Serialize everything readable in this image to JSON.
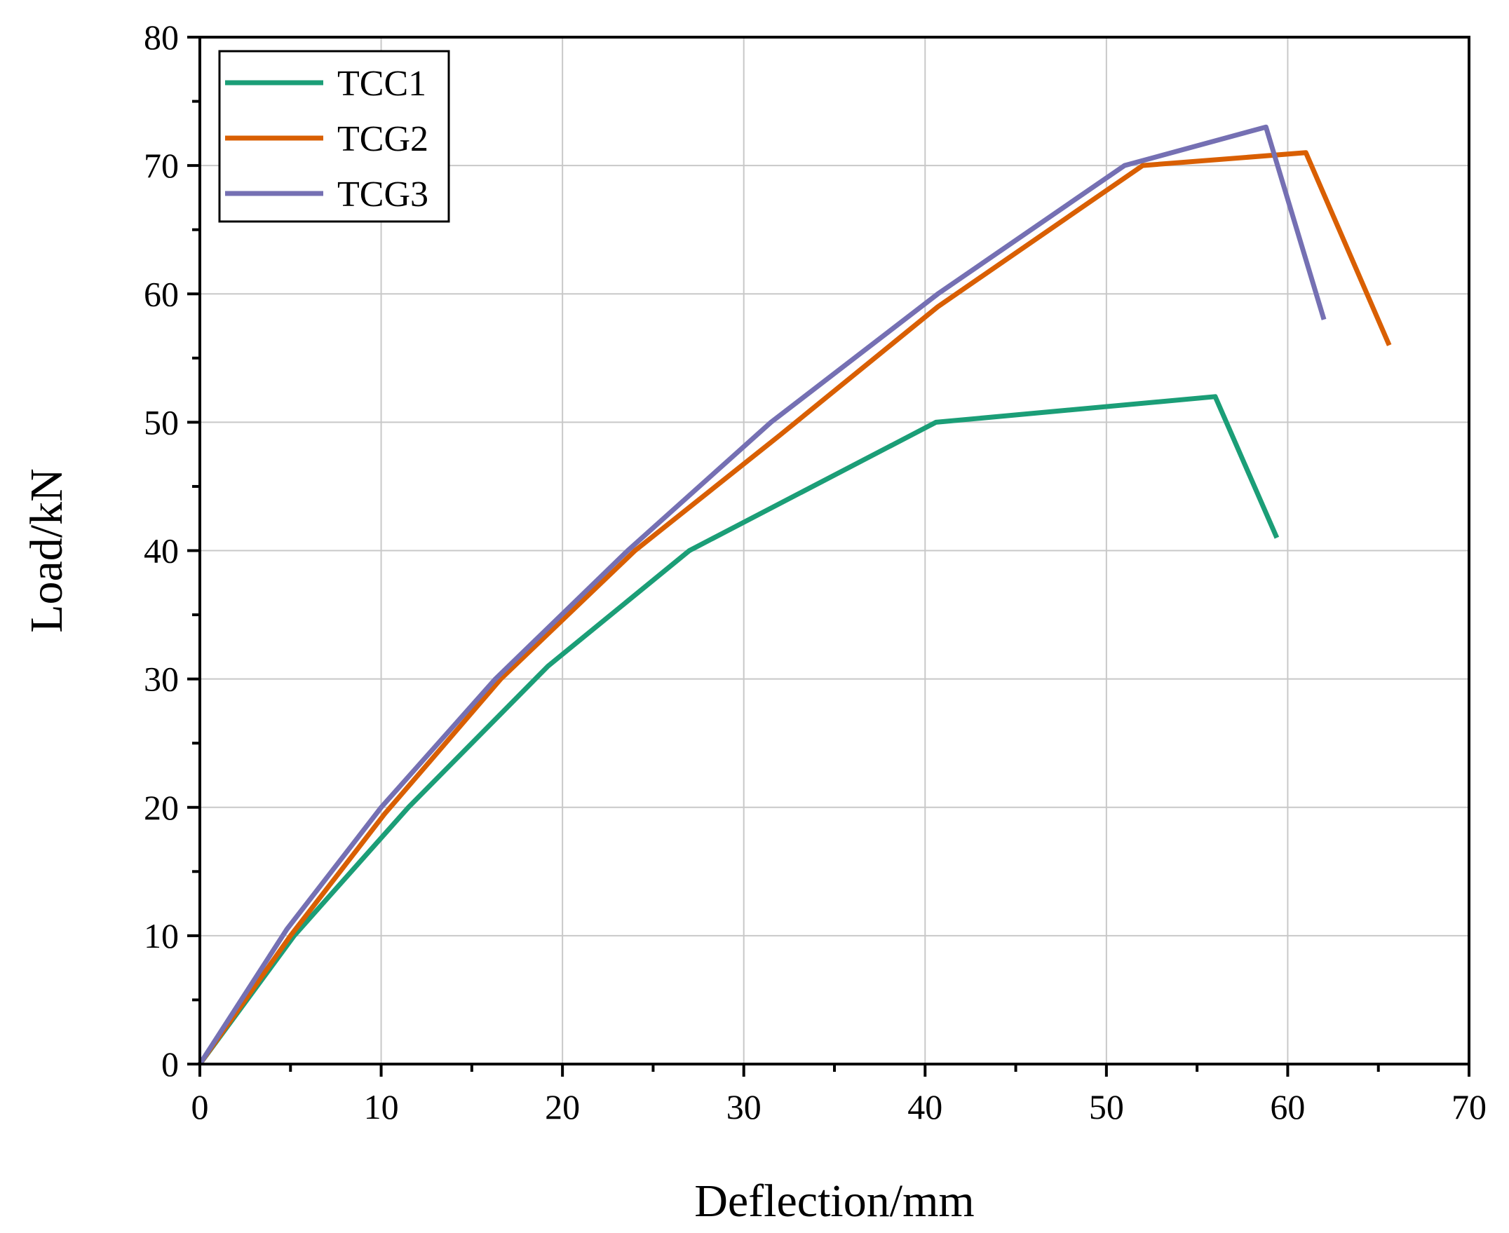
{
  "chart_data": {
    "type": "line",
    "xlabel": "Deflection/mm",
    "ylabel": "Load/kN",
    "xlim": [
      0,
      70
    ],
    "ylim": [
      0,
      80
    ],
    "x_ticks": [
      0,
      10,
      20,
      30,
      40,
      50,
      60,
      70
    ],
    "y_ticks": [
      0,
      10,
      20,
      30,
      40,
      50,
      60,
      70,
      80
    ],
    "grid": true,
    "legend_position": "top-left",
    "series": [
      {
        "name": "TCC1",
        "color": "#1b9e77",
        "points": [
          [
            0,
            0
          ],
          [
            5.2,
            10
          ],
          [
            11.5,
            20
          ],
          [
            19.2,
            31
          ],
          [
            27,
            40
          ],
          [
            40.6,
            50
          ],
          [
            56,
            52
          ],
          [
            59.4,
            41
          ]
        ]
      },
      {
        "name": "TCG2",
        "color": "#d95f02",
        "points": [
          [
            0,
            0
          ],
          [
            5,
            10
          ],
          [
            10.2,
            19.5
          ],
          [
            16.6,
            30
          ],
          [
            24,
            40
          ],
          [
            32,
            49
          ],
          [
            40.7,
            59
          ],
          [
            52,
            70
          ],
          [
            61,
            71
          ],
          [
            65.6,
            56
          ]
        ]
      },
      {
        "name": "TCG3",
        "color": "#7570b3",
        "points": [
          [
            0,
            0
          ],
          [
            4.8,
            10.5
          ],
          [
            10,
            20
          ],
          [
            16.3,
            30
          ],
          [
            23.6,
            40
          ],
          [
            31.5,
            50
          ],
          [
            40.7,
            60
          ],
          [
            51,
            70
          ],
          [
            58.8,
            73
          ],
          [
            62,
            58
          ]
        ]
      }
    ]
  }
}
